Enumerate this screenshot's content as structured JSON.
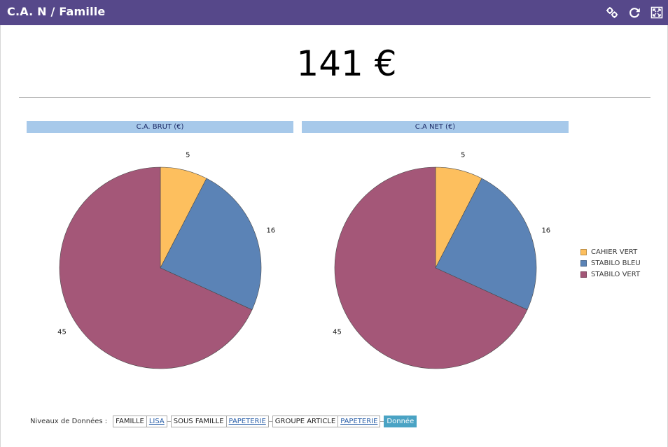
{
  "window": {
    "title": "C.A. N / Famille",
    "icons": [
      "settings-icon",
      "refresh-icon",
      "fullscreen-icon"
    ]
  },
  "kpi": {
    "value": "141 €"
  },
  "legend": [
    {
      "label": "CAHIER VERT",
      "color": "#fdbf5e"
    },
    {
      "label": "STABILO BLEU",
      "color": "#5b83b6"
    },
    {
      "label": "STABILO VERT",
      "color": "#a45778"
    }
  ],
  "chart_data": [
    {
      "type": "pie",
      "title": "C.A. BRUT (€)",
      "labels": [
        "CAHIER VERT",
        "STABILO BLEU",
        "STABILO VERT"
      ],
      "values": [
        5,
        16,
        45
      ],
      "colors": [
        "#fdbf5e",
        "#5b83b6",
        "#a45778"
      ]
    },
    {
      "type": "pie",
      "title": "C.A NET (€)",
      "labels": [
        "CAHIER VERT",
        "STABILO BLEU",
        "STABILO VERT"
      ],
      "values": [
        5,
        16,
        45
      ],
      "colors": [
        "#fdbf5e",
        "#5b83b6",
        "#a45778"
      ]
    }
  ],
  "levels": {
    "label": "Niveaux de Données :",
    "items": [
      {
        "name": "FAMILLE",
        "value": "LISA"
      },
      {
        "name": "SOUS FAMILLE",
        "value": "PAPETERIE"
      },
      {
        "name": "GROUPE ARTICLE",
        "value": "PAPETERIE"
      }
    ],
    "current": "Donnée"
  }
}
